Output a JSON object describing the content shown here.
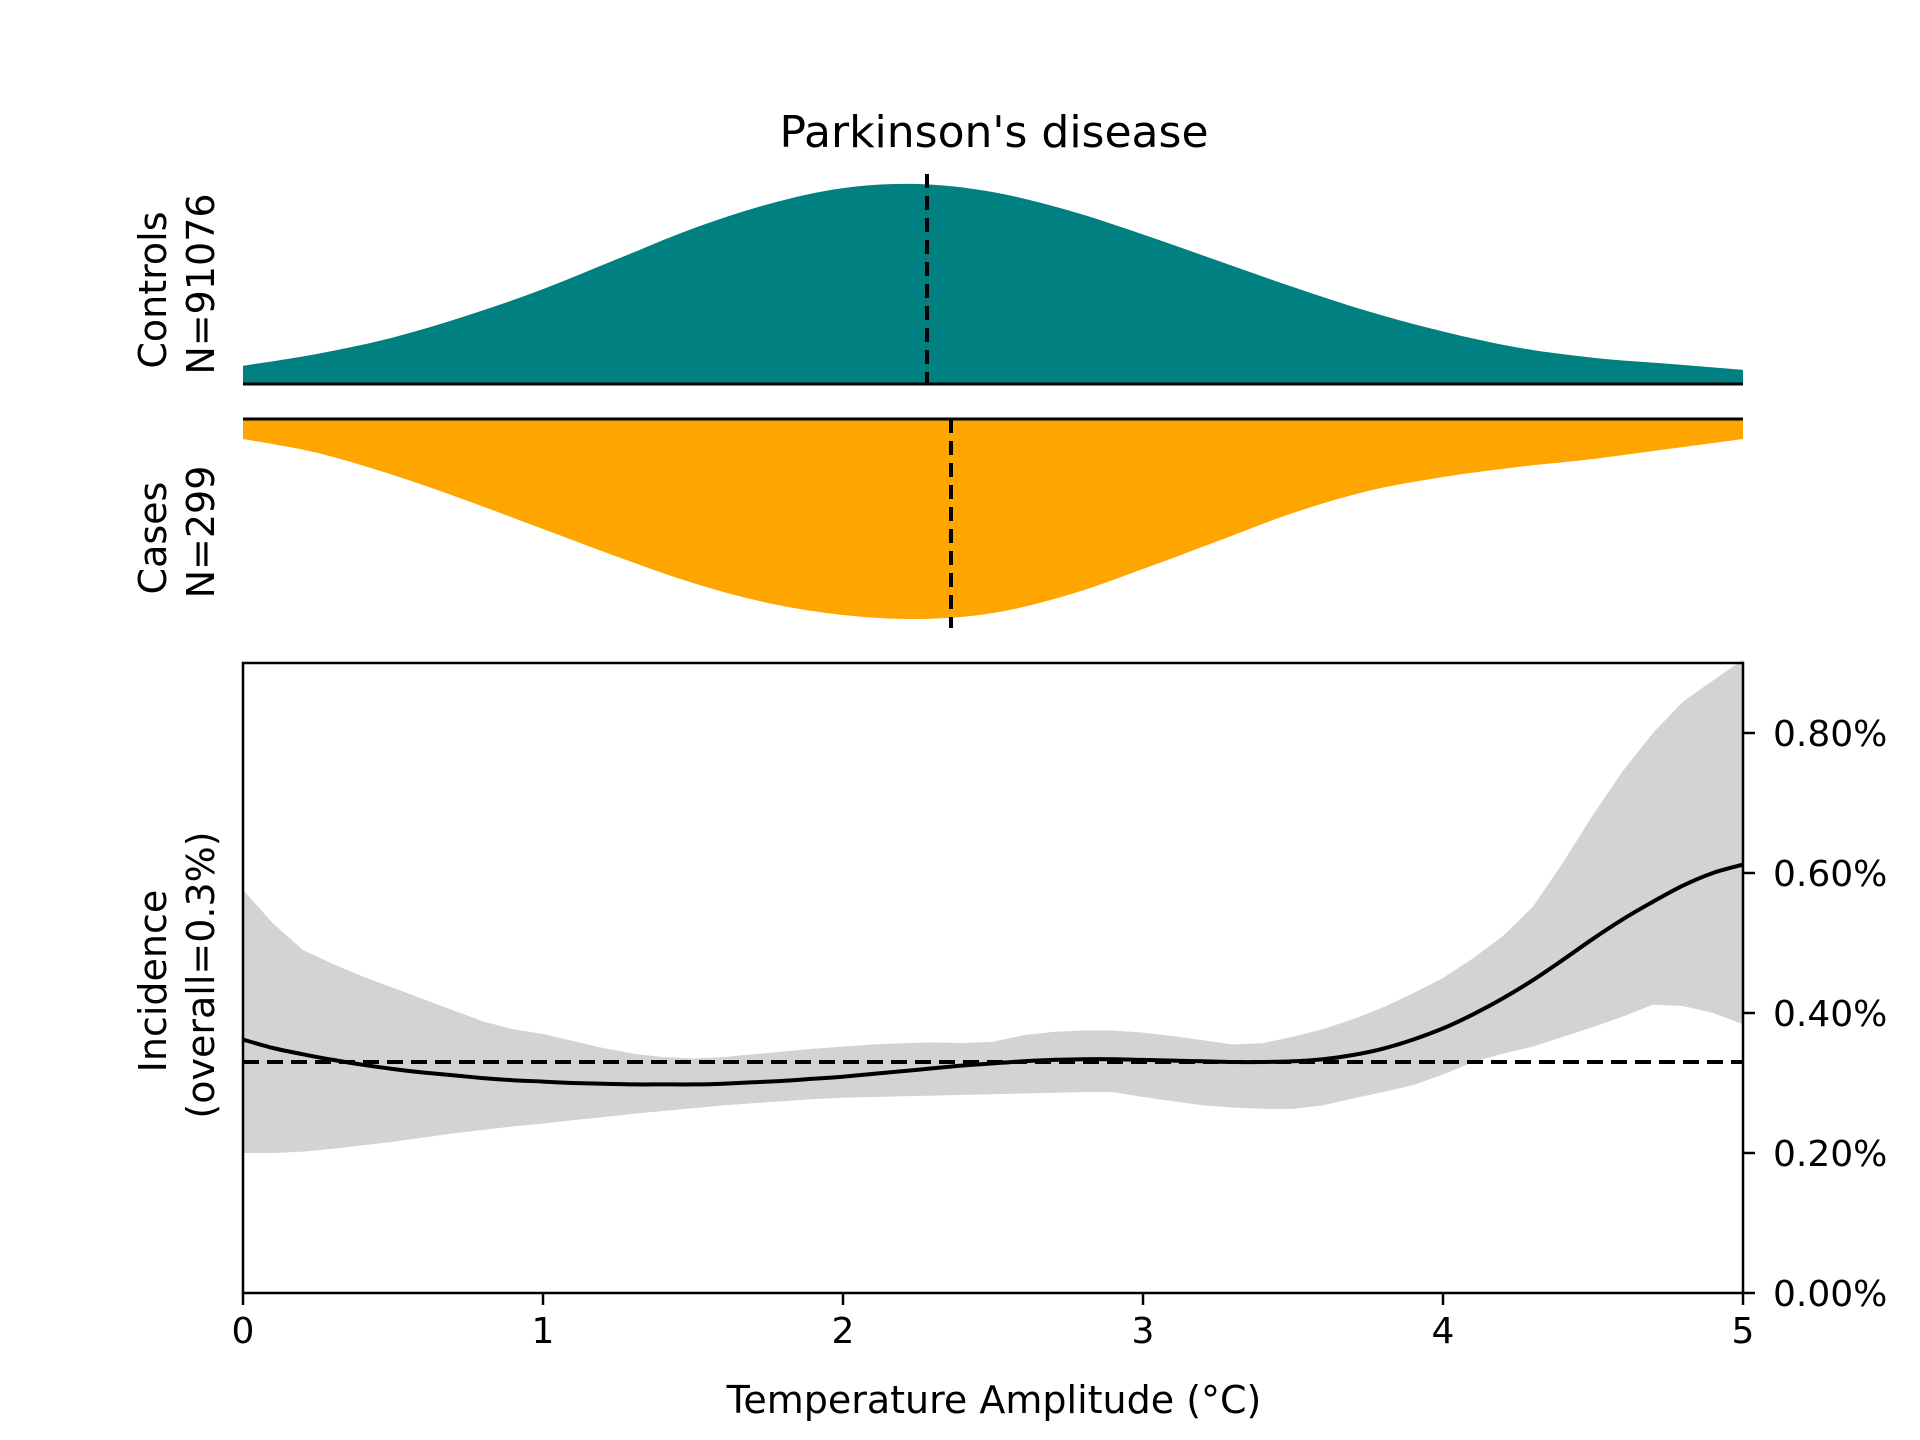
{
  "chart_data": {
    "type": "area",
    "title": "Parkinson's disease",
    "xlabel": "Temperature Amplitude (°C)",
    "xlim": [
      0,
      5
    ],
    "x_ticks": [
      "0",
      "1",
      "2",
      "3",
      "4",
      "5"
    ],
    "controls": {
      "label_line1": "Controls",
      "label_line2": "N=91076",
      "color": "#008080",
      "mean": 2.28,
      "density": {
        "x": [
          0,
          0.25,
          0.5,
          0.75,
          1.0,
          1.25,
          1.5,
          1.75,
          2.0,
          2.25,
          2.5,
          2.75,
          3.0,
          3.25,
          3.5,
          3.75,
          4.0,
          4.25,
          4.5,
          4.75,
          5.0
        ],
        "y": [
          0.09,
          0.15,
          0.23,
          0.34,
          0.47,
          0.62,
          0.77,
          0.89,
          0.97,
          0.99,
          0.95,
          0.86,
          0.74,
          0.61,
          0.48,
          0.36,
          0.26,
          0.18,
          0.13,
          0.1,
          0.07
        ]
      }
    },
    "cases": {
      "label_line1": "Cases",
      "label_line2": "N=299",
      "color": "#FFA500",
      "mean": 2.36,
      "density": {
        "x": [
          0,
          0.25,
          0.5,
          0.75,
          1.0,
          1.25,
          1.5,
          1.75,
          2.0,
          2.25,
          2.5,
          2.75,
          3.0,
          3.25,
          3.5,
          3.75,
          4.0,
          4.25,
          4.5,
          4.75,
          5.0
        ],
        "y": [
          0.1,
          0.17,
          0.28,
          0.41,
          0.55,
          0.69,
          0.82,
          0.92,
          0.98,
          1.0,
          0.97,
          0.88,
          0.75,
          0.61,
          0.47,
          0.36,
          0.29,
          0.24,
          0.2,
          0.15,
          0.1
        ]
      }
    },
    "incidence": {
      "ylabel_line1": "Incidence",
      "ylabel_line2": "(overall=0.3%)",
      "ylim": [
        0,
        0.9
      ],
      "y_ticks": [
        0,
        0.2,
        0.4,
        0.6,
        0.8
      ],
      "y_tick_labels": [
        "0.00%",
        "0.20%",
        "0.40%",
        "0.60%",
        "0.80%"
      ],
      "overall": 0.33,
      "line_color": "#000000",
      "band_color": "#d3d3d3",
      "x": [
        0,
        0.1,
        0.2,
        0.3,
        0.4,
        0.5,
        0.6,
        0.7,
        0.8,
        0.9,
        1.0,
        1.1,
        1.2,
        1.3,
        1.4,
        1.5,
        1.6,
        1.7,
        1.8,
        1.9,
        2.0,
        2.1,
        2.2,
        2.3,
        2.4,
        2.5,
        2.6,
        2.7,
        2.8,
        2.9,
        3.0,
        3.1,
        3.2,
        3.3,
        3.4,
        3.5,
        3.6,
        3.7,
        3.8,
        3.9,
        4.0,
        4.1,
        4.2,
        4.3,
        4.4,
        4.5,
        4.6,
        4.7,
        4.8,
        4.9,
        5.0
      ],
      "y": [
        0.362,
        0.35,
        0.341,
        0.333,
        0.326,
        0.32,
        0.315,
        0.311,
        0.307,
        0.304,
        0.302,
        0.3,
        0.299,
        0.298,
        0.298,
        0.298,
        0.299,
        0.301,
        0.303,
        0.306,
        0.309,
        0.313,
        0.317,
        0.321,
        0.325,
        0.328,
        0.331,
        0.333,
        0.334,
        0.334,
        0.333,
        0.332,
        0.331,
        0.33,
        0.33,
        0.331,
        0.334,
        0.34,
        0.349,
        0.362,
        0.378,
        0.398,
        0.421,
        0.447,
        0.476,
        0.506,
        0.534,
        0.559,
        0.582,
        0.6,
        0.612
      ],
      "lower": [
        0.2,
        0.2,
        0.202,
        0.206,
        0.211,
        0.216,
        0.222,
        0.228,
        0.233,
        0.238,
        0.242,
        0.247,
        0.251,
        0.256,
        0.26,
        0.264,
        0.268,
        0.271,
        0.274,
        0.277,
        0.279,
        0.28,
        0.281,
        0.282,
        0.283,
        0.284,
        0.285,
        0.286,
        0.287,
        0.287,
        0.28,
        0.274,
        0.268,
        0.265,
        0.263,
        0.263,
        0.268,
        0.278,
        0.287,
        0.297,
        0.312,
        0.33,
        0.342,
        0.352,
        0.366,
        0.38,
        0.395,
        0.412,
        0.41,
        0.4,
        0.384
      ],
      "upper": [
        0.576,
        0.528,
        0.49,
        0.47,
        0.452,
        0.436,
        0.42,
        0.404,
        0.388,
        0.377,
        0.37,
        0.36,
        0.35,
        0.342,
        0.337,
        0.335,
        0.337,
        0.341,
        0.345,
        0.349,
        0.352,
        0.355,
        0.357,
        0.358,
        0.357,
        0.359,
        0.368,
        0.373,
        0.375,
        0.375,
        0.372,
        0.367,
        0.361,
        0.355,
        0.357,
        0.366,
        0.377,
        0.391,
        0.408,
        0.428,
        0.45,
        0.478,
        0.51,
        0.552,
        0.615,
        0.683,
        0.746,
        0.8,
        0.845,
        0.875,
        0.905
      ]
    }
  }
}
